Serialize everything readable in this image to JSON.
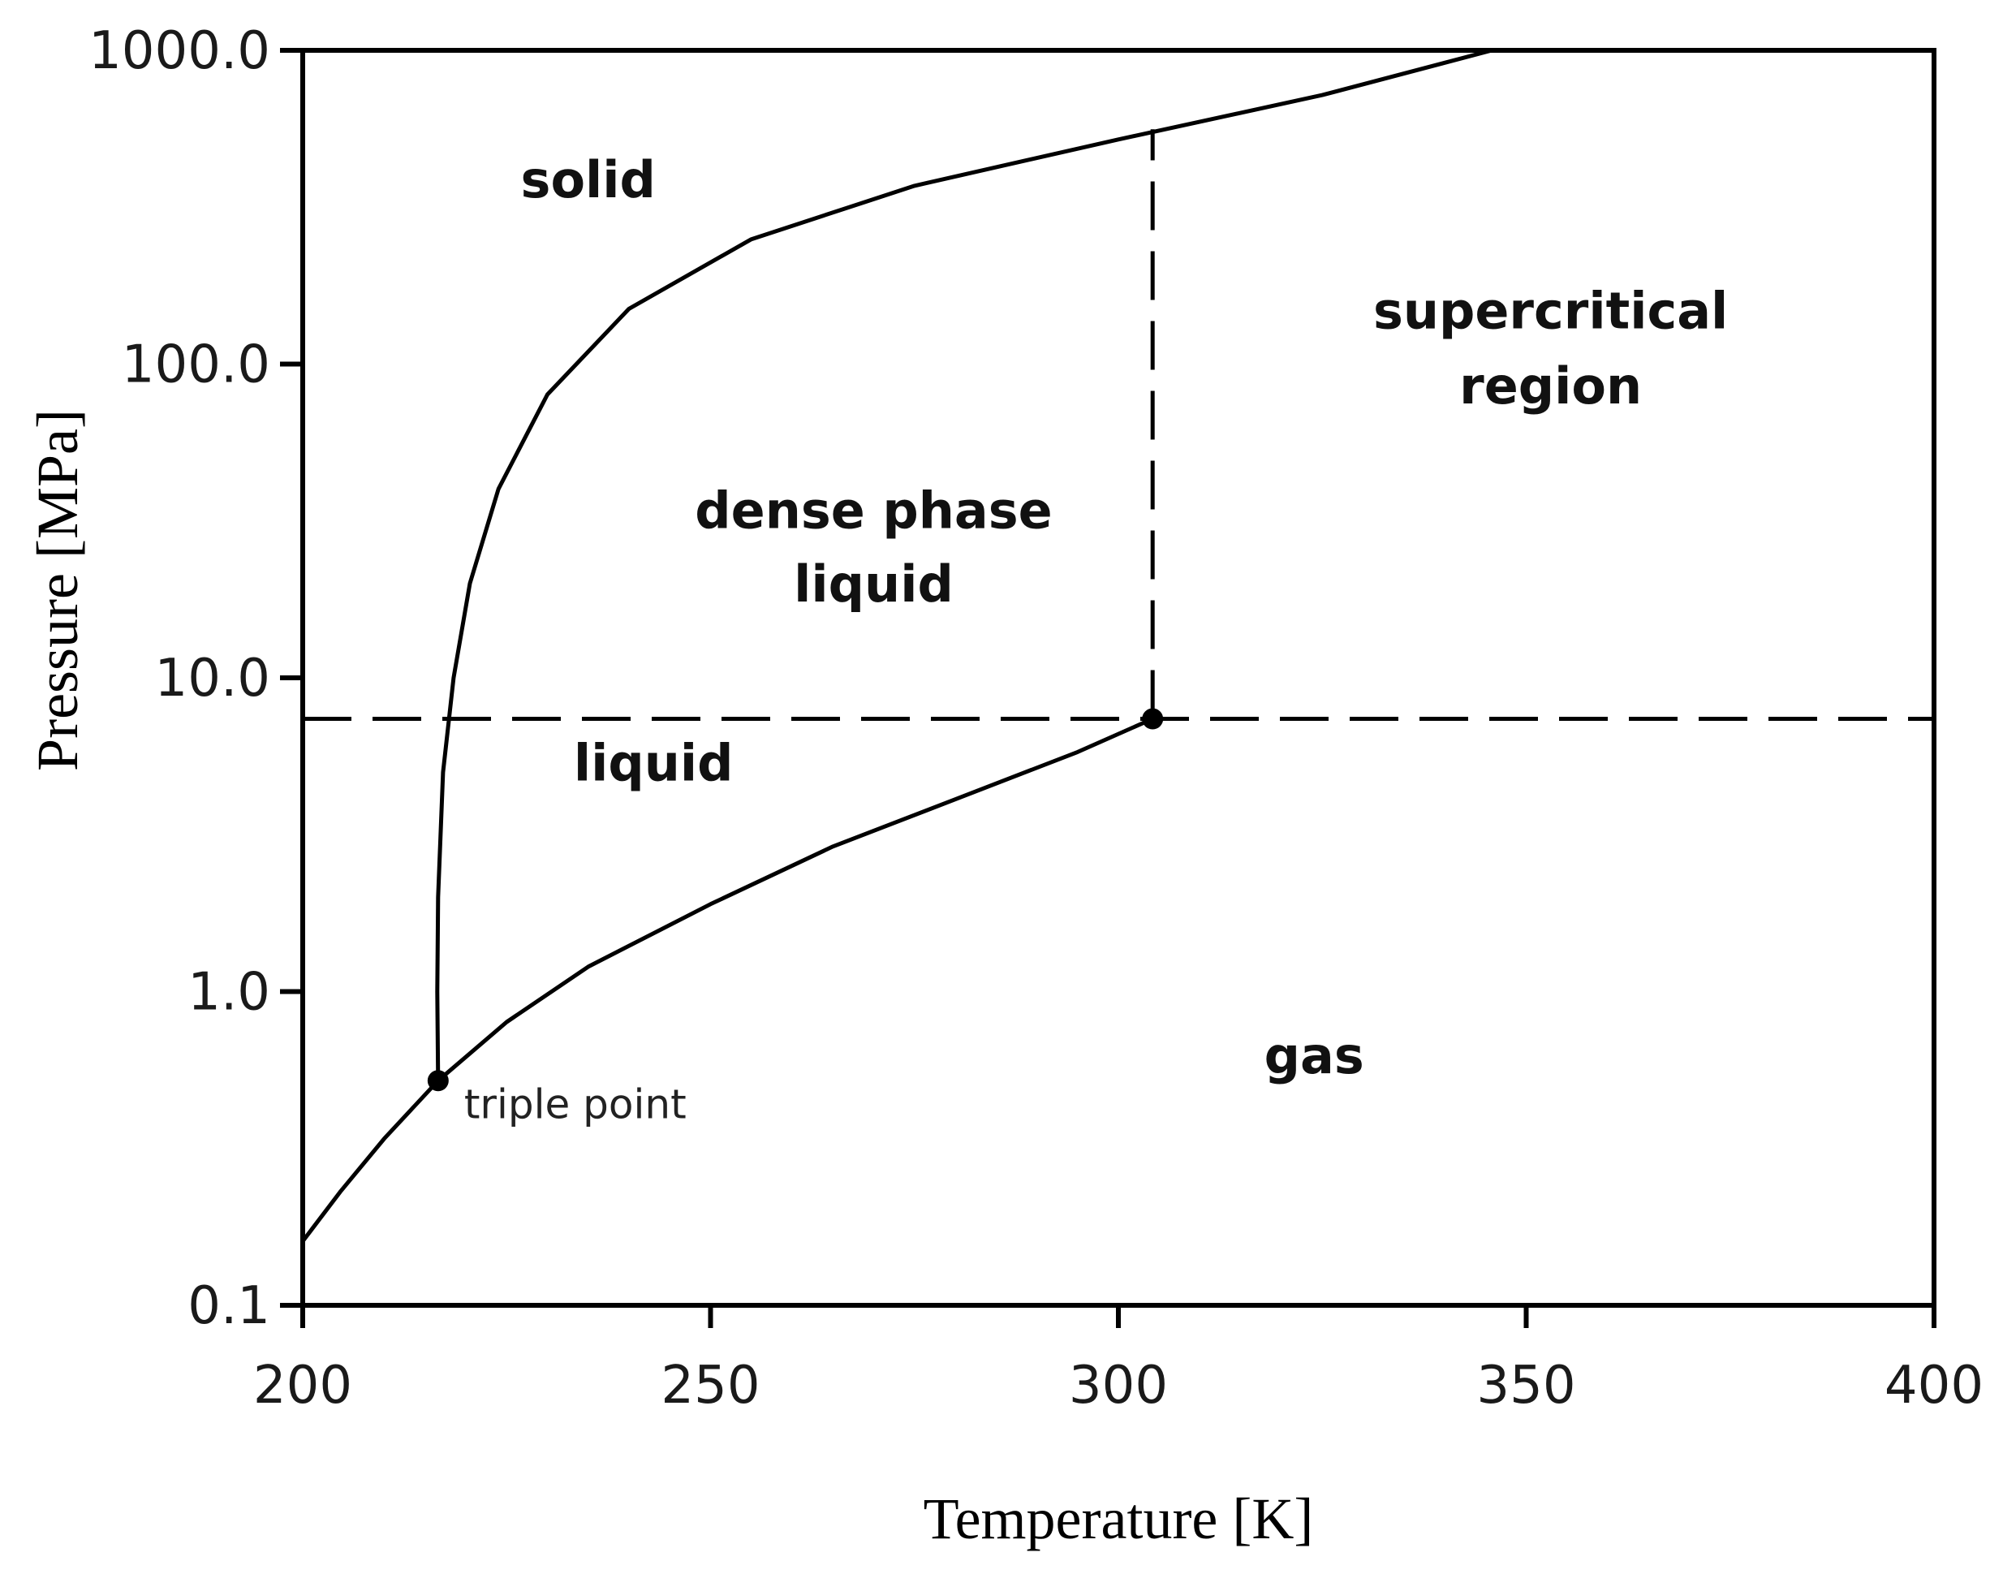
{
  "chart_data": {
    "type": "line",
    "xlabel": "Temperature [K]",
    "ylabel": "Pressure [MPa]",
    "xlim": [
      200,
      400
    ],
    "ylim": [
      0.1,
      1000.0
    ],
    "yscale": "log",
    "grid": false,
    "x_ticks": [
      "200",
      "250",
      "300",
      "350",
      "400"
    ],
    "x_tick_values": [
      200,
      250,
      300,
      350,
      400
    ],
    "y_ticks": [
      "0.1",
      "1.0",
      "10.0",
      "100.0",
      "1000.0"
    ],
    "y_tick_values": [
      0.1,
      1.0,
      10.0,
      100.0,
      1000.0
    ],
    "series": [
      {
        "style": "solid",
        "x": [
          200,
          204.6,
          210,
          216.6,
          225,
          235,
          250,
          265,
          280,
          295,
          304.2
        ],
        "y": [
          0.16,
          0.23,
          0.34,
          0.52,
          0.8,
          1.2,
          1.9,
          2.9,
          4.1,
          5.8,
          7.4
        ]
      },
      {
        "style": "solid",
        "x": [
          216.6,
          216.5,
          216.6,
          217.2,
          218.5,
          220.5,
          224,
          230,
          240,
          255,
          275,
          300,
          325,
          345.8
        ],
        "y": [
          0.52,
          1.0,
          2.0,
          5.0,
          10.0,
          20.0,
          40.0,
          80.0,
          150.0,
          250.0,
          370.0,
          520.0,
          720.0,
          1000.0
        ]
      },
      {
        "style": "dashed",
        "x": [
          200,
          400
        ],
        "y": [
          7.4,
          7.4
        ]
      },
      {
        "style": "dashed",
        "x": [
          304.2,
          304.2
        ],
        "y": [
          7.4,
          560.0
        ]
      }
    ],
    "points": [
      {
        "x": 216.6,
        "y": 0.52,
        "label": "triple point"
      },
      {
        "x": 304.2,
        "y": 7.4,
        "label": ""
      }
    ],
    "annotations": [
      {
        "text": "solid",
        "x": 235,
        "y": 340
      },
      {
        "text": "dense phase",
        "x": 270,
        "y": 30
      },
      {
        "text": "liquid",
        "x": 270,
        "y": 17.5
      },
      {
        "text": "supercritical",
        "x": 353,
        "y": 130
      },
      {
        "text": "region",
        "x": 353,
        "y": 75
      },
      {
        "text": "liquid",
        "x": 243,
        "y": 4.7
      },
      {
        "text": "gas",
        "x": 324,
        "y": 0.55
      }
    ]
  }
}
